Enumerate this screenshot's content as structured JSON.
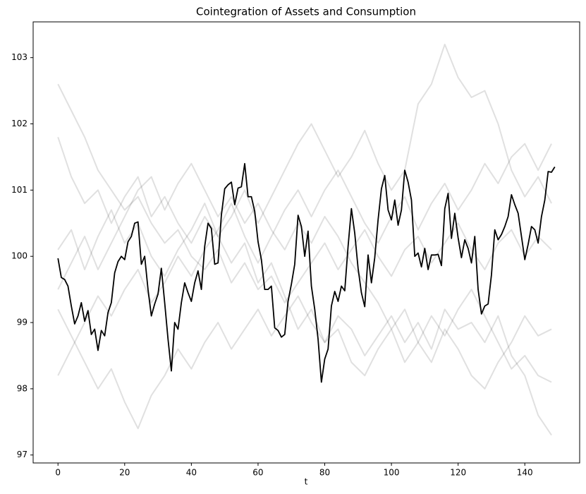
{
  "chart_data": {
    "type": "line",
    "title": "Cointegration of Assets and Consumption",
    "x_label": "t",
    "xlim": [
      -7.45,
      156.45
    ],
    "ylim": [
      96.88,
      103.54
    ],
    "xticks": [
      0,
      20,
      40,
      60,
      80,
      100,
      120,
      140
    ],
    "yticks": [
      97,
      98,
      99,
      100,
      101,
      102,
      103
    ],
    "series": [
      {
        "color": "#000000",
        "alpha": 0.12,
        "x": [
          0,
          4,
          8,
          12,
          16,
          20,
          24,
          28,
          32,
          36,
          40,
          44,
          48,
          52,
          56,
          60,
          64,
          68,
          72,
          76,
          80,
          84,
          88,
          92,
          96,
          100,
          104,
          108,
          112,
          116,
          120,
          124,
          128,
          132,
          136,
          140,
          144,
          148
        ],
        "values": [
          102.6,
          102.2,
          101.8,
          101.3,
          101.0,
          100.7,
          100.9,
          100.5,
          100.2,
          100.4,
          100.0,
          99.8,
          100.1,
          99.6,
          99.9,
          99.5,
          99.7,
          99.3,
          99.6,
          99.9,
          100.2,
          99.8,
          100.1,
          100.4,
          100.0,
          99.7,
          100.1,
          100.3,
          99.9,
          100.2,
          100.5,
          100.1,
          99.8,
          100.2,
          100.4,
          100.0,
          100.3,
          100.1
        ]
      },
      {
        "color": "#000000",
        "alpha": 0.12,
        "x": [
          0,
          4,
          8,
          12,
          16,
          20,
          24,
          28,
          32,
          36,
          40,
          44,
          48,
          52,
          56,
          60,
          64,
          68,
          72,
          76,
          80,
          84,
          88,
          92,
          96,
          100,
          104,
          108,
          112,
          116,
          120,
          124,
          128,
          132,
          136,
          140,
          144,
          148
        ],
        "values": [
          100.1,
          100.4,
          99.8,
          100.3,
          100.7,
          100.2,
          100.5,
          100.0,
          99.7,
          100.1,
          100.4,
          100.8,
          100.3,
          100.6,
          101.0,
          100.5,
          100.9,
          101.3,
          101.7,
          102.0,
          101.6,
          101.2,
          101.5,
          101.9,
          101.4,
          101.0,
          101.3,
          102.3,
          102.6,
          103.2,
          102.7,
          102.4,
          102.5,
          102.0,
          101.3,
          100.9,
          101.2,
          100.8
        ]
      },
      {
        "color": "#000000",
        "alpha": 0.12,
        "x": [
          0,
          4,
          8,
          12,
          16,
          20,
          24,
          28,
          32,
          36,
          40,
          44,
          48,
          52,
          56,
          60,
          64,
          68,
          72,
          76,
          80,
          84,
          88,
          92,
          96,
          100,
          104,
          108,
          112,
          116,
          120,
          124,
          128,
          132,
          136,
          140,
          144,
          148
        ],
        "values": [
          99.2,
          98.8,
          98.4,
          98.0,
          98.3,
          97.8,
          97.4,
          97.9,
          98.2,
          98.6,
          98.3,
          98.7,
          99.0,
          98.6,
          98.9,
          99.2,
          98.8,
          99.1,
          99.4,
          99.0,
          98.7,
          99.1,
          98.9,
          98.5,
          98.8,
          99.1,
          98.7,
          99.0,
          98.6,
          99.2,
          98.9,
          99.0,
          98.7,
          99.1,
          98.5,
          98.2,
          97.6,
          97.3
        ]
      },
      {
        "color": "#000000",
        "alpha": 0.12,
        "x": [
          0,
          4,
          8,
          12,
          16,
          20,
          24,
          28,
          32,
          36,
          40,
          44,
          48,
          52,
          56,
          60,
          64,
          68,
          72,
          76,
          80,
          84,
          88,
          92,
          96,
          100,
          104,
          108,
          112,
          116,
          120,
          124,
          128,
          132,
          136,
          140,
          144,
          148
        ],
        "values": [
          101.8,
          101.2,
          100.8,
          101.0,
          100.5,
          100.9,
          101.2,
          100.6,
          100.9,
          100.5,
          100.2,
          100.6,
          100.3,
          99.9,
          100.2,
          99.6,
          99.9,
          99.4,
          98.9,
          99.2,
          98.7,
          98.9,
          98.4,
          98.2,
          98.6,
          98.9,
          98.4,
          98.7,
          99.1,
          98.8,
          99.2,
          99.5,
          99.1,
          98.7,
          98.3,
          98.5,
          98.2,
          98.1
        ]
      },
      {
        "color": "#000000",
        "alpha": 0.12,
        "x": [
          0,
          4,
          8,
          12,
          16,
          20,
          24,
          28,
          32,
          36,
          40,
          44,
          48,
          52,
          56,
          60,
          64,
          68,
          72,
          76,
          80,
          84,
          88,
          92,
          96,
          100,
          104,
          108,
          112,
          116,
          120,
          124,
          128,
          132,
          136,
          140,
          144,
          148
        ],
        "values": [
          99.5,
          99.9,
          100.3,
          99.8,
          100.2,
          100.6,
          101.0,
          101.2,
          100.7,
          101.1,
          101.4,
          101.0,
          100.6,
          100.9,
          100.5,
          100.8,
          100.4,
          100.1,
          100.5,
          100.2,
          100.6,
          100.3,
          99.9,
          99.6,
          99.3,
          98.9,
          99.2,
          98.7,
          98.4,
          98.9,
          98.6,
          98.2,
          98.0,
          98.4,
          98.7,
          99.1,
          98.8,
          98.9
        ]
      },
      {
        "color": "#000000",
        "alpha": 0.12,
        "x": [
          0,
          4,
          8,
          12,
          16,
          20,
          24,
          28,
          32,
          36,
          40,
          44,
          48,
          52,
          56,
          60,
          64,
          68,
          72,
          76,
          80,
          84,
          88,
          92,
          96,
          100,
          104,
          108,
          112,
          116,
          120,
          124,
          128,
          132,
          136,
          140,
          144,
          148
        ],
        "values": [
          98.2,
          98.6,
          99.0,
          99.4,
          99.1,
          99.5,
          99.8,
          99.3,
          99.6,
          100.0,
          99.7,
          100.1,
          100.4,
          100.8,
          100.3,
          99.9,
          100.3,
          100.7,
          101.0,
          100.6,
          101.0,
          101.3,
          100.9,
          100.5,
          100.2,
          100.6,
          100.9,
          100.4,
          100.8,
          101.1,
          100.7,
          101.0,
          101.4,
          101.1,
          101.5,
          101.7,
          101.3,
          101.7
        ]
      },
      {
        "color": "#000000",
        "alpha": 1,
        "x": [
          0,
          1,
          2,
          3,
          4,
          5,
          6,
          7,
          8,
          9,
          10,
          11,
          12,
          13,
          14,
          15,
          16,
          17,
          18,
          19,
          20,
          21,
          22,
          23,
          24,
          25,
          26,
          27,
          28,
          29,
          30,
          31,
          32,
          33,
          34,
          35,
          36,
          37,
          38,
          39,
          40,
          41,
          42,
          43,
          44,
          45,
          46,
          47,
          48,
          49,
          50,
          51,
          52,
          53,
          54,
          55,
          56,
          57,
          58,
          59,
          60,
          61,
          62,
          63,
          64,
          65,
          66,
          67,
          68,
          69,
          70,
          71,
          72,
          73,
          74,
          75,
          76,
          77,
          78,
          79,
          80,
          81,
          82,
          83,
          84,
          85,
          86,
          87,
          88,
          89,
          90,
          91,
          92,
          93,
          94,
          95,
          96,
          97,
          98,
          99,
          100,
          101,
          102,
          103,
          104,
          105,
          106,
          107,
          108,
          109,
          110,
          111,
          112,
          113,
          114,
          115,
          116,
          117,
          118,
          119,
          120,
          121,
          122,
          123,
          124,
          125,
          126,
          127,
          128,
          129,
          130,
          131,
          132,
          133,
          134,
          135,
          136,
          137,
          138,
          139,
          140,
          141,
          142,
          143,
          144,
          145,
          146,
          147,
          148,
          149
        ],
        "values": [
          99.97,
          99.68,
          99.65,
          99.55,
          99.25,
          98.98,
          99.1,
          99.3,
          99.02,
          99.18,
          98.82,
          98.9,
          98.58,
          98.88,
          98.8,
          99.15,
          99.3,
          99.75,
          99.92,
          100.0,
          99.95,
          100.22,
          100.3,
          100.5,
          100.52,
          99.88,
          100.0,
          99.5,
          99.1,
          99.28,
          99.43,
          99.82,
          99.3,
          98.75,
          98.27,
          99.0,
          98.9,
          99.3,
          99.6,
          99.45,
          99.32,
          99.6,
          99.78,
          99.5,
          100.15,
          100.5,
          100.42,
          99.88,
          99.9,
          100.62,
          101.02,
          101.08,
          101.12,
          100.78,
          101.03,
          101.05,
          101.4,
          100.9,
          100.9,
          100.68,
          100.22,
          99.95,
          99.5,
          99.5,
          99.55,
          98.92,
          98.88,
          98.78,
          98.82,
          99.32,
          99.58,
          99.88,
          100.62,
          100.45,
          100.0,
          100.38,
          99.55,
          99.2,
          98.75,
          98.1,
          98.45,
          98.6,
          99.25,
          99.47,
          99.32,
          99.55,
          99.48,
          100.15,
          100.72,
          100.35,
          99.82,
          99.45,
          99.24,
          100.02,
          99.6,
          99.98,
          100.55,
          101.02,
          101.22,
          100.7,
          100.55,
          100.85,
          100.47,
          100.7,
          101.3,
          101.12,
          100.85,
          100.0,
          100.05,
          99.84,
          100.12,
          99.8,
          100.02,
          100.02,
          100.03,
          99.86,
          100.72,
          100.95,
          100.27,
          100.65,
          100.28,
          99.98,
          100.25,
          100.12,
          99.9,
          100.3,
          99.5,
          99.13,
          99.25,
          99.28,
          99.72,
          100.4,
          100.25,
          100.33,
          100.45,
          100.6,
          100.93,
          100.78,
          100.65,
          100.3,
          99.95,
          100.18,
          100.45,
          100.4,
          100.2,
          100.6,
          100.85,
          101.28,
          101.27,
          101.35
        ]
      }
    ]
  }
}
